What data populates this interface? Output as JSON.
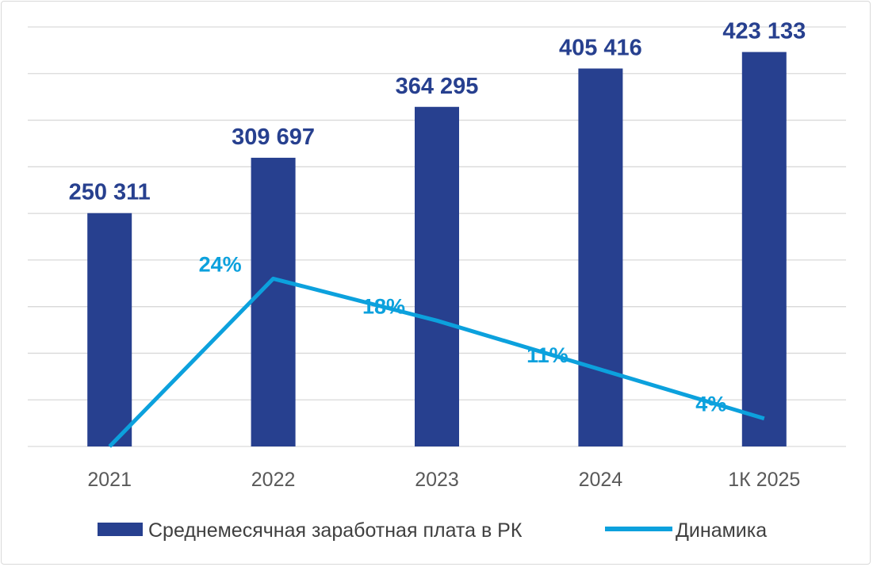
{
  "chart_data": {
    "type": "bar",
    "categories": [
      "2021",
      "2022",
      "2023",
      "2024",
      "1К 2025"
    ],
    "series": [
      {
        "name": "Среднемесячная заработная плата в РК",
        "type": "bar",
        "values": [
          250311,
          309697,
          364295,
          405416,
          423133
        ],
        "value_labels": [
          "250 311",
          "309 697",
          "364 295",
          "405 416",
          "423 133"
        ]
      },
      {
        "name": "Динамика",
        "type": "line",
        "values": [
          0,
          24,
          18,
          11,
          4
        ],
        "value_labels": [
          "",
          "24%",
          "18%",
          "11%",
          "4%"
        ]
      }
    ],
    "ylim_bar": [
      0,
      450000
    ],
    "ylim_line": [
      0,
      60
    ],
    "grid": true,
    "legend_position": "bottom",
    "colors": {
      "bar": "#27408f",
      "line": "#0ca1dd",
      "tick": "#595959",
      "grid": "#d9d9d9"
    }
  }
}
